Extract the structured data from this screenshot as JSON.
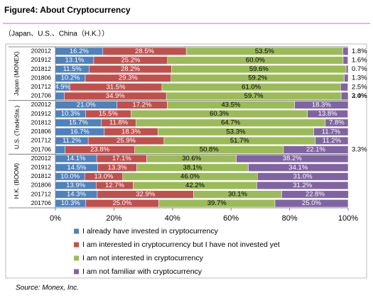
{
  "chart_data": {
    "type": "stacked-bar-horizontal",
    "title": "Figure4: About Cryptocurrency",
    "subtitle": "（Japan、U.S.、China（H.K.））",
    "source": "Source: Monex, Inc.",
    "groups": [
      {
        "name": "Japan (MONEX)",
        "categories": [
          "202012",
          "201912",
          "201812",
          "201806",
          "201712",
          "201706"
        ]
      },
      {
        "name": "U.S. (TradeSta.)",
        "categories": [
          "202012",
          "201912",
          "201812",
          "201806",
          "201712",
          "201706"
        ]
      },
      {
        "name": "H.K. (BOOM)",
        "categories": [
          "202012",
          "201912",
          "201812",
          "201806",
          "201712",
          "201706"
        ]
      }
    ],
    "series": [
      {
        "name": "I already have invested in cryptocurrency",
        "color": "#4f81bd",
        "values": [
          16.2,
          13.1,
          11.5,
          10.2,
          4.9,
          3.0,
          21.0,
          10.3,
          15.7,
          16.7,
          11.2,
          3.3,
          14.1,
          14.5,
          10.0,
          13.9,
          14.3,
          10.3
        ],
        "value_labels": [
          "16.2%",
          "13.1%",
          "11.5%",
          "10.2%",
          "4.9%",
          "3.0%",
          "21.0%",
          "10.3%",
          "15.7%",
          "16.7%",
          "11.2%",
          "3.3%",
          "14.1%",
          "14.5%",
          "10.0%",
          "13.9%",
          "14.3%",
          "10.3%"
        ]
      },
      {
        "name": "I am interested in cryptocurrency but I have not invested yet",
        "color": "#c0504d",
        "values": [
          28.5,
          25.2,
          28.2,
          29.3,
          31.5,
          34.9,
          17.2,
          15.5,
          11.8,
          18.3,
          25.9,
          23.8,
          17.1,
          13.3,
          13.0,
          12.7,
          32.9,
          25.0
        ],
        "value_labels": [
          "28.5%",
          "25.2%",
          "28.2%",
          "29.3%",
          "31.5%",
          "34.9%",
          "17.2%",
          "15.5%",
          "11.8%",
          "18.3%",
          "25.9%",
          "23.8%",
          "17.1%",
          "13.3%",
          "13.0%",
          "12.7%",
          "32.9%",
          "25.0%"
        ]
      },
      {
        "name": "I am not interested in cryptocurrency",
        "color": "#9bbb59",
        "values": [
          53.5,
          60.0,
          59.6,
          59.2,
          61.0,
          59.7,
          43.5,
          60.3,
          64.7,
          53.3,
          51.7,
          50.8,
          30.6,
          38.1,
          46.0,
          42.2,
          30.1,
          39.7
        ],
        "value_labels": [
          "53.5%",
          "60.0%",
          "59.6%",
          "59.2%",
          "61.0%",
          "59.7%",
          "43.5%",
          "60.3%",
          "64.7%",
          "53.3%",
          "51.7%",
          "50.8%",
          "30.6%",
          "38.1%",
          "46.0%",
          "42.2%",
          "30.1%",
          "39.7%"
        ]
      },
      {
        "name": "I am not familiar with cryptocurrency",
        "color": "#8064a2",
        "values": [
          1.8,
          1.6,
          0.7,
          1.3,
          2.5,
          2.4,
          18.3,
          13.8,
          7.8,
          11.7,
          11.2,
          22.1,
          38.2,
          34.1,
          31.0,
          31.2,
          22.8,
          25.0
        ],
        "value_labels": [
          "1.8%",
          "1.6%",
          "0.7%",
          "1.3%",
          "2.5%",
          "2.4%",
          "18.3%",
          "13.8%",
          "7.8%",
          "11.7%",
          "11.2%",
          "22.1%",
          "38.2%",
          "34.1%",
          "31.0%",
          "31.2%",
          "22.8%",
          "25.0%"
        ]
      }
    ],
    "xlim": [
      0,
      100
    ],
    "xticks": [
      {
        "value": 0,
        "label": "0%"
      },
      {
        "value": 20,
        "label": "20%"
      },
      {
        "value": 40,
        "label": "40%"
      },
      {
        "value": 60,
        "label": "60%"
      },
      {
        "value": 80,
        "label": "80%"
      },
      {
        "value": 100,
        "label": "100%"
      }
    ]
  }
}
